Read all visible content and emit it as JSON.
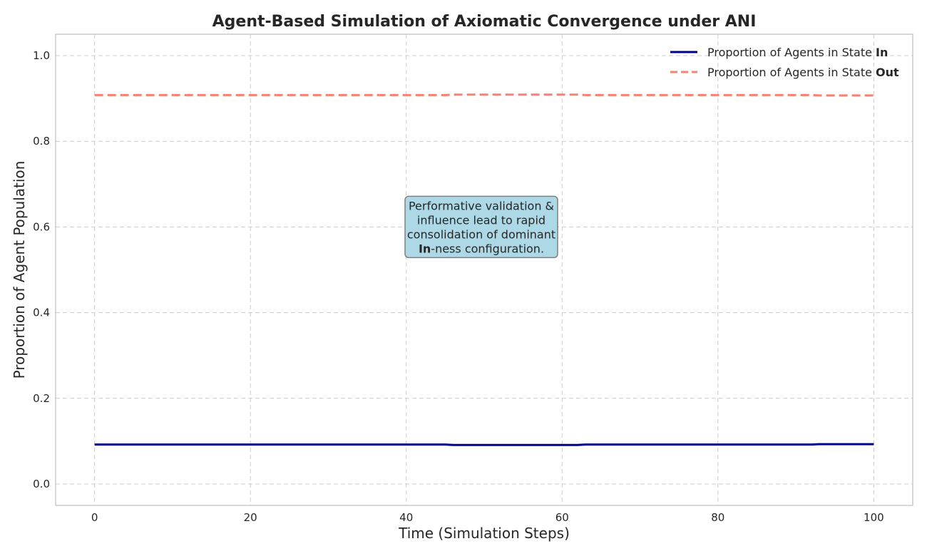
{
  "chart_data": {
    "type": "line",
    "title": "Agent-Based Simulation of Axiomatic Convergence under ANI",
    "xlabel": "Time (Simulation Steps)",
    "ylabel": "Proportion of Agent Population",
    "xlim": [
      -5,
      105
    ],
    "ylim": [
      -0.05,
      1.05
    ],
    "xticks": [
      0,
      20,
      40,
      60,
      80,
      100
    ],
    "xtick_labels": [
      "0",
      "20",
      "40",
      "60",
      "80",
      "100"
    ],
    "yticks": [
      0.0,
      0.2,
      0.4,
      0.6,
      0.8,
      1.0
    ],
    "ytick_labels": [
      "0.0",
      "0.2",
      "0.4",
      "0.6",
      "0.8",
      "1.0"
    ],
    "grid": true,
    "legend_position": "top-right",
    "series": [
      {
        "name_prefix": "Proportion of Agents in State ",
        "name_bold": "In",
        "color": "#00008b",
        "style": "solid",
        "x": [
          0,
          10,
          20,
          30,
          40,
          45,
          46,
          50,
          55,
          60,
          62,
          63,
          70,
          80,
          90,
          92,
          93,
          100
        ],
        "y": [
          0.092,
          0.092,
          0.092,
          0.092,
          0.092,
          0.092,
          0.091,
          0.091,
          0.091,
          0.091,
          0.091,
          0.092,
          0.092,
          0.092,
          0.092,
          0.092,
          0.093,
          0.093
        ]
      },
      {
        "name_prefix": "Proportion of Agents in State ",
        "name_bold": "Out",
        "color": "#fa8072",
        "style": "dashed",
        "x": [
          0,
          10,
          20,
          30,
          40,
          45,
          46,
          50,
          55,
          60,
          62,
          63,
          70,
          80,
          90,
          92,
          93,
          100
        ],
        "y": [
          0.908,
          0.908,
          0.908,
          0.908,
          0.908,
          0.908,
          0.909,
          0.909,
          0.909,
          0.909,
          0.909,
          0.908,
          0.908,
          0.908,
          0.908,
          0.908,
          0.907,
          0.907
        ]
      }
    ],
    "annotation": {
      "lines": [
        {
          "text": "Performative validation &"
        },
        {
          "text": "influence lead to rapid"
        },
        {
          "text": "consolidation of dominant"
        },
        {
          "bold": "In",
          "text": "-ness configuration."
        }
      ],
      "x": 50,
      "y": 0.6,
      "box_fill": "#add8e6",
      "box_stroke": "#808080"
    }
  }
}
